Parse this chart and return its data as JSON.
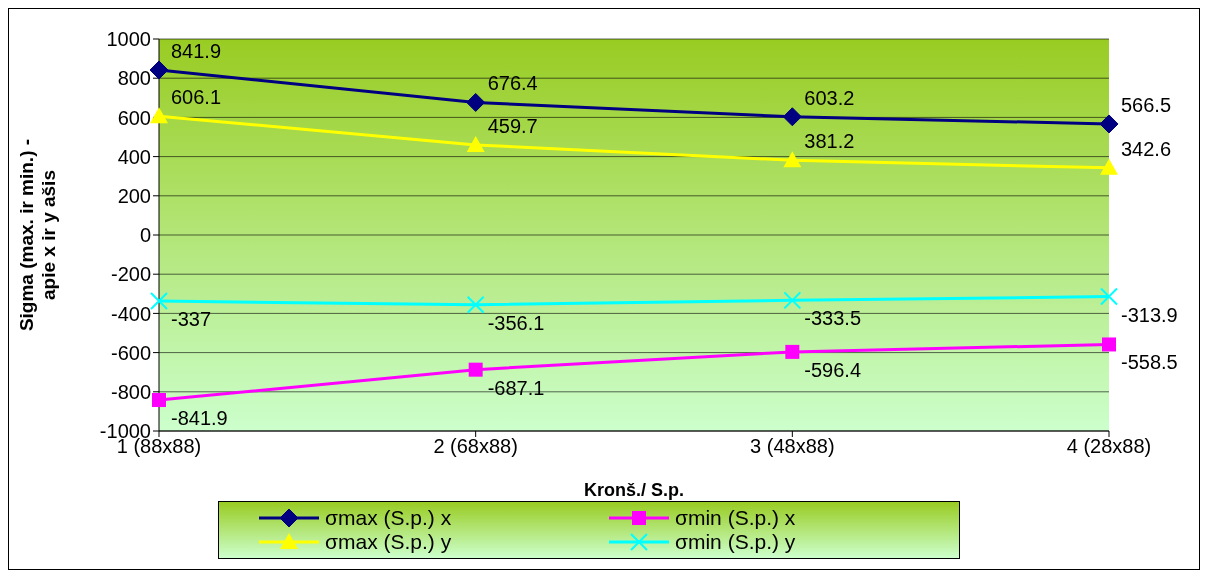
{
  "chart_data": {
    "type": "line",
    "xlabel": "Kronš./ S.p.",
    "ylabel": "Sigma (max. ir min.) - apie x ir y ašis",
    "categories": [
      "1 (88x88)",
      "2 (68x88)",
      "3 (48x88)",
      "4 (28x88)"
    ],
    "series": [
      {
        "name": "σmax  (S.p.)  x",
        "color": "#000080",
        "marker": "diamond",
        "values": [
          841.9,
          676.4,
          603.2,
          566.5
        ]
      },
      {
        "name": "σmin  (S.p.)  x",
        "color": "#ff00ff",
        "marker": "square",
        "values": [
          -841.9,
          -687.1,
          -596.4,
          -558.5
        ]
      },
      {
        "name": "σmax  (S.p.) y",
        "color": "#ffff00",
        "marker": "triangle",
        "values": [
          606.1,
          459.7,
          381.2,
          342.6
        ]
      },
      {
        "name": "σmin  (S.p.) y",
        "color": "#00ffff",
        "marker": "cross",
        "values": [
          -337,
          -356.1,
          -333.5,
          -313.9
        ]
      }
    ],
    "ylim": [
      -1000,
      1000
    ],
    "yticks": [
      -1000,
      -800,
      -600,
      -400,
      -200,
      0,
      200,
      400,
      600,
      800,
      1000
    ],
    "grid": "y",
    "legend": "bottom",
    "data_labels": true
  }
}
